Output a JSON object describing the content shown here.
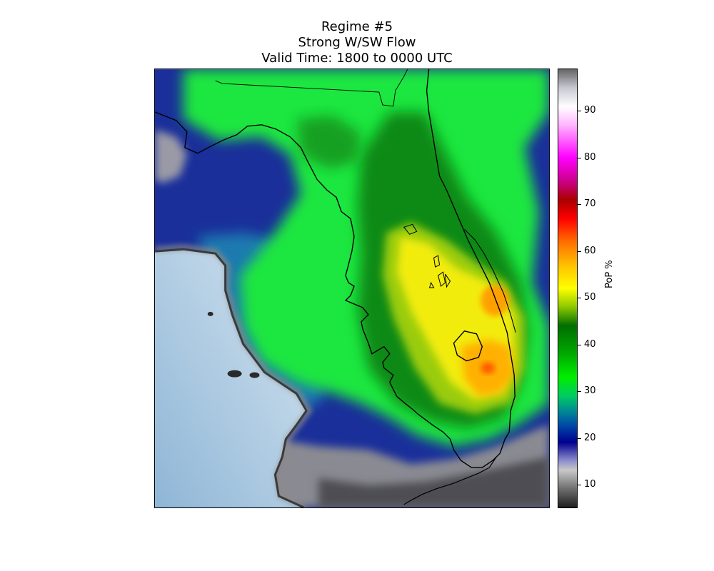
{
  "title": {
    "line1": "Regime #5",
    "line2": "Strong W/SW Flow",
    "line3": "Valid Time: 1800 to 0000 UTC"
  },
  "colorbar": {
    "label": "PoP %",
    "min": 5,
    "max": 99,
    "ticks": [
      10,
      20,
      30,
      40,
      50,
      60,
      70,
      80,
      90
    ],
    "stops": [
      {
        "value": 5,
        "color": "#1e1e1e"
      },
      {
        "value": 9,
        "color": "#6e6e6e"
      },
      {
        "value": 13,
        "color": "#c8c8c8"
      },
      {
        "value": 15,
        "color": "#8e8ecc"
      },
      {
        "value": 19,
        "color": "#000090"
      },
      {
        "value": 23,
        "color": "#0050a8"
      },
      {
        "value": 26,
        "color": "#009090"
      },
      {
        "value": 29,
        "color": "#00cc60"
      },
      {
        "value": 33,
        "color": "#00ee00"
      },
      {
        "value": 38,
        "color": "#00a800"
      },
      {
        "value": 44,
        "color": "#006e00"
      },
      {
        "value": 48,
        "color": "#8cc800"
      },
      {
        "value": 52,
        "color": "#ffff00"
      },
      {
        "value": 57,
        "color": "#ffc000"
      },
      {
        "value": 62,
        "color": "#ff6e00"
      },
      {
        "value": 67,
        "color": "#ff0000"
      },
      {
        "value": 71,
        "color": "#aa0000"
      },
      {
        "value": 75,
        "color": "#cc0088"
      },
      {
        "value": 80,
        "color": "#ff00ff"
      },
      {
        "value": 87,
        "color": "#ffb4ff"
      },
      {
        "value": 91,
        "color": "#ffffff"
      },
      {
        "value": 95,
        "color": "#c8c8d2"
      },
      {
        "value": 99,
        "color": "#646464"
      }
    ]
  },
  "map": {
    "region": "Florida peninsula and eastern Gulf of Mexico",
    "water_color": "#a8c8e0",
    "max_pop": 62
  }
}
